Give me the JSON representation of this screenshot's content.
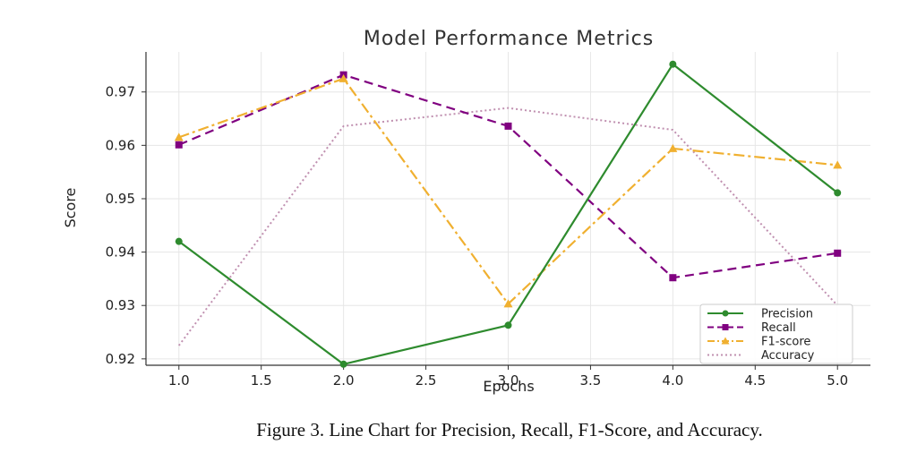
{
  "caption": "Figure 3. Line Chart for Precision, Recall, F1-Score, and Accuracy.",
  "chart_data": {
    "type": "line",
    "title": "Model Performance Metrics",
    "xlabel": "Epochs",
    "ylabel": "Score",
    "xlim": [
      0.8,
      5.2
    ],
    "ylim": [
      0.9188,
      0.9775
    ],
    "x_ticks": [
      "1.0",
      "1.5",
      "2.0",
      "2.5",
      "3.0",
      "3.5",
      "4.0",
      "4.5",
      "5.0"
    ],
    "y_ticks": [
      "0.92",
      "0.93",
      "0.94",
      "0.95",
      "0.96",
      "0.97"
    ],
    "grid": true,
    "legend_position": "bottom-right",
    "x": [
      1.0,
      2.0,
      3.0,
      4.0,
      5.0
    ],
    "series": [
      {
        "name": "Precision",
        "values": [
          0.942,
          0.919,
          0.9263,
          0.9752,
          0.9511
        ],
        "color": "#2e8b2e",
        "style": "solid",
        "marker": "circle"
      },
      {
        "name": "Recall",
        "values": [
          0.9601,
          0.9732,
          0.9636,
          0.9352,
          0.9398
        ],
        "color": "#800080",
        "style": "dashed",
        "marker": "square"
      },
      {
        "name": "F1-score",
        "values": [
          0.9615,
          0.9725,
          0.9303,
          0.9594,
          0.9563
        ],
        "color": "#f0b030",
        "style": "dashdot",
        "marker": "triangle"
      },
      {
        "name": "Accuracy",
        "values": [
          0.9225,
          0.9636,
          0.967,
          0.9629,
          0.93
        ],
        "color": "#c090b0",
        "style": "dotted",
        "marker": "none"
      }
    ]
  }
}
